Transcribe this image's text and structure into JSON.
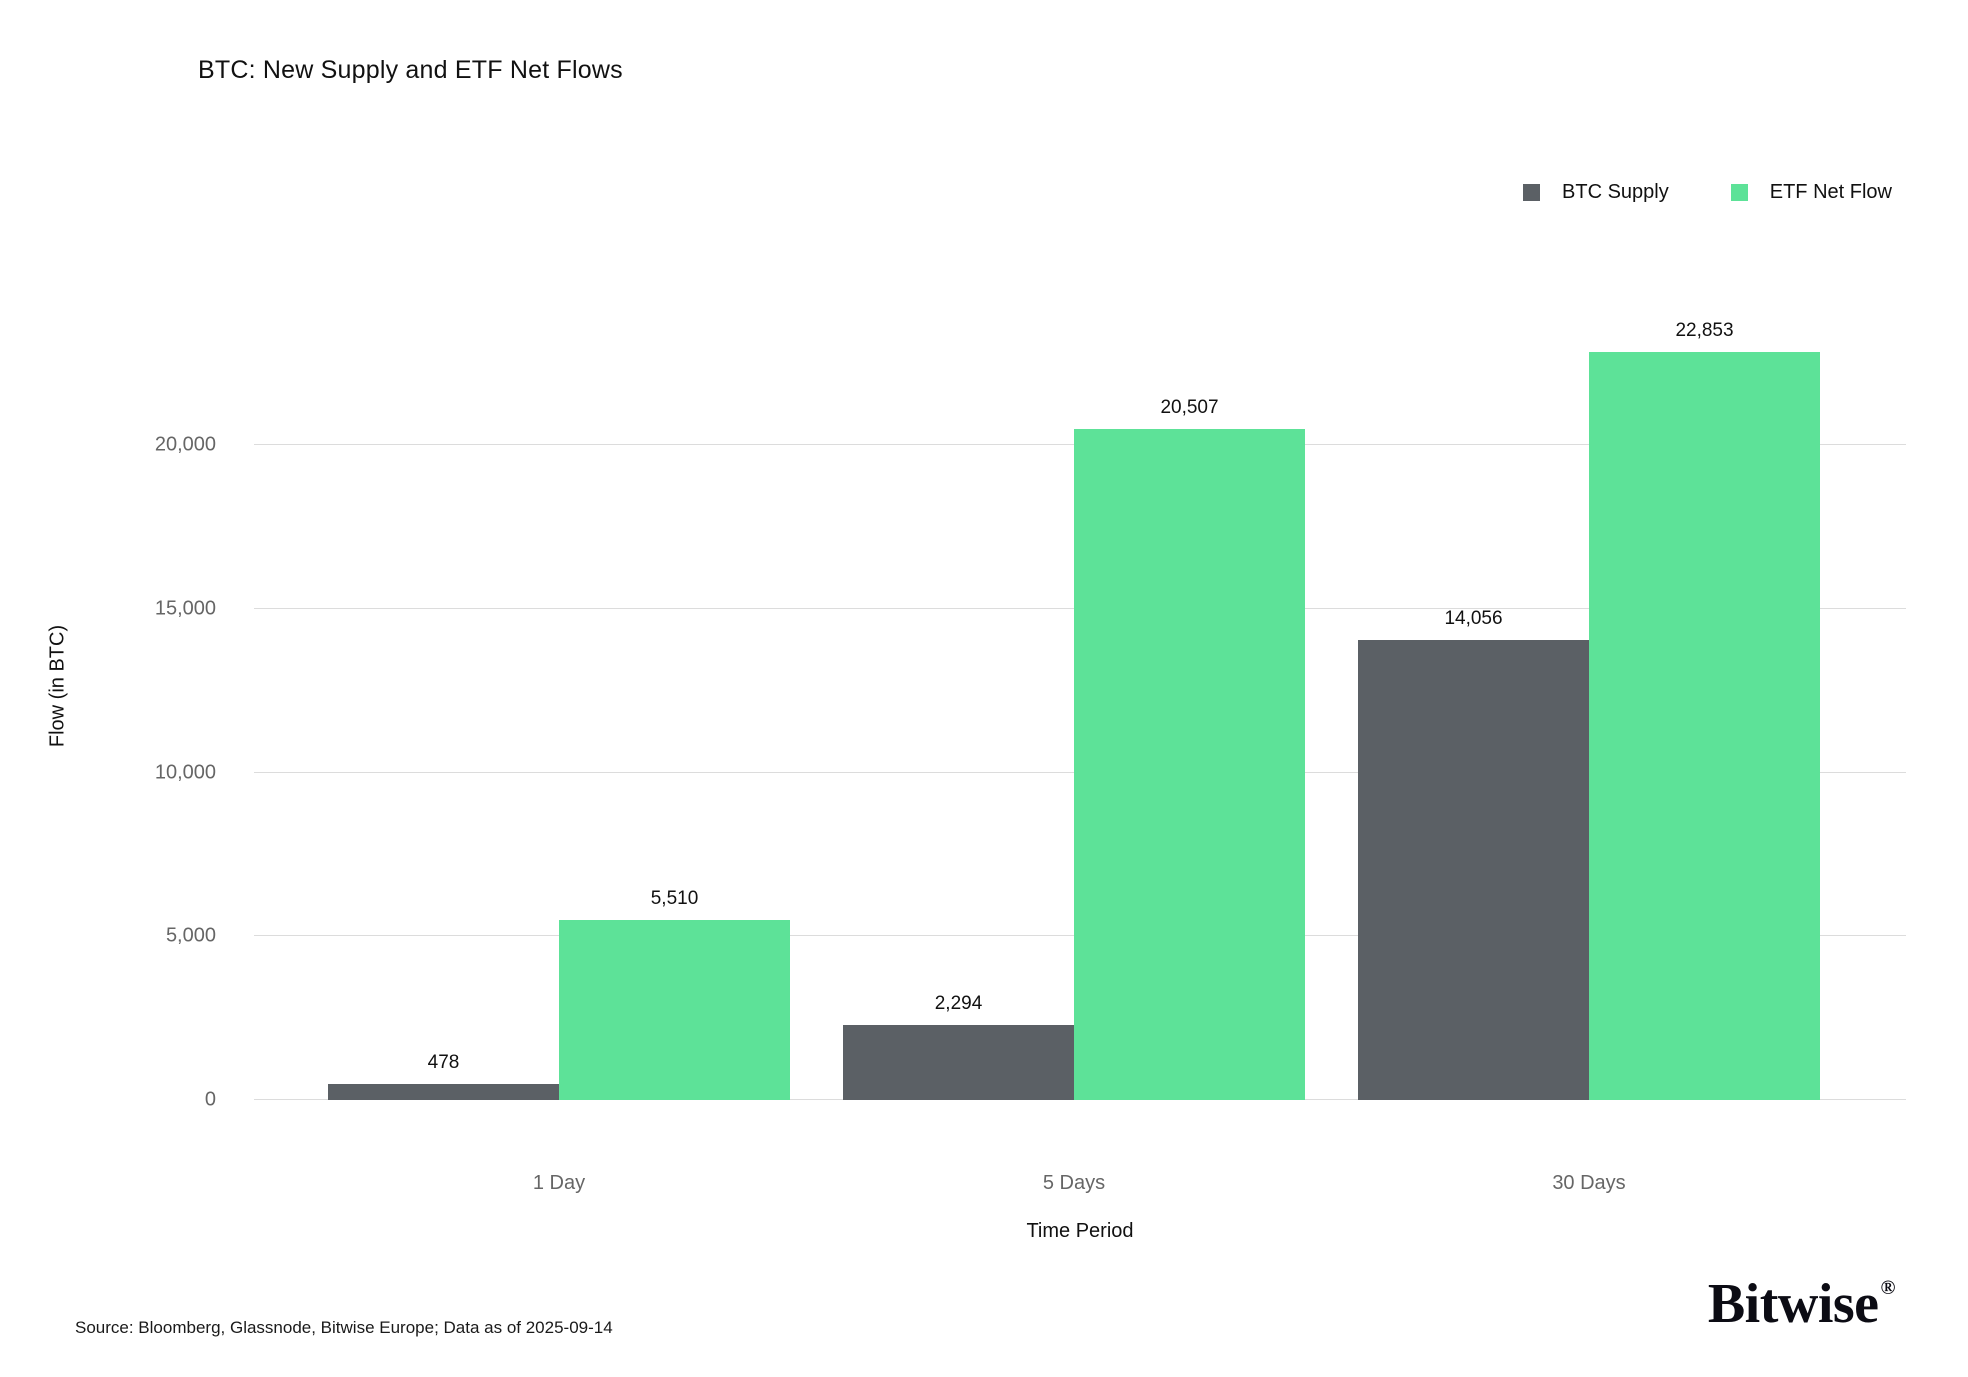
{
  "page": {
    "background": "#ffffff"
  },
  "header": {
    "title": "BTC: New Supply and ETF Net Flows"
  },
  "legend": {
    "items": [
      {
        "label": "BTC Supply",
        "color": "#5b6065"
      },
      {
        "label": "ETF Net Flow",
        "color": "#5de298"
      }
    ]
  },
  "chart_data": {
    "type": "bar",
    "title": "BTC: New Supply and ETF Net Flows",
    "categories": [
      "1 Day",
      "5 Days",
      "30 Days"
    ],
    "series": [
      {
        "name": "BTC Supply",
        "color": "#5b6065",
        "values": [
          478,
          2294,
          14056
        ],
        "labels": [
          "478",
          "2,294",
          "14,056"
        ]
      },
      {
        "name": "ETF Net Flow",
        "color": "#5de298",
        "values": [
          5510,
          20507,
          22853
        ],
        "labels": [
          "5,510",
          "20,507",
          "22,853"
        ]
      }
    ],
    "xlabel": "Time Period",
    "ylabel": "Flow (in BTC)",
    "yticks": [
      0,
      5000,
      10000,
      15000,
      20000
    ],
    "ytick_labels": [
      "0",
      "5,000",
      "10,000",
      "15,000",
      "20,000"
    ],
    "ylim": [
      0,
      27500
    ],
    "grid": "horizontal",
    "legend_position": "top-right",
    "bar_value_labels": true
  },
  "footer": {
    "source": "Source: Bloomberg, Glassnode, Bitwise Europe; Data as of 2025-09-14",
    "logo_text": "Bitwise",
    "logo_mark": "®"
  }
}
